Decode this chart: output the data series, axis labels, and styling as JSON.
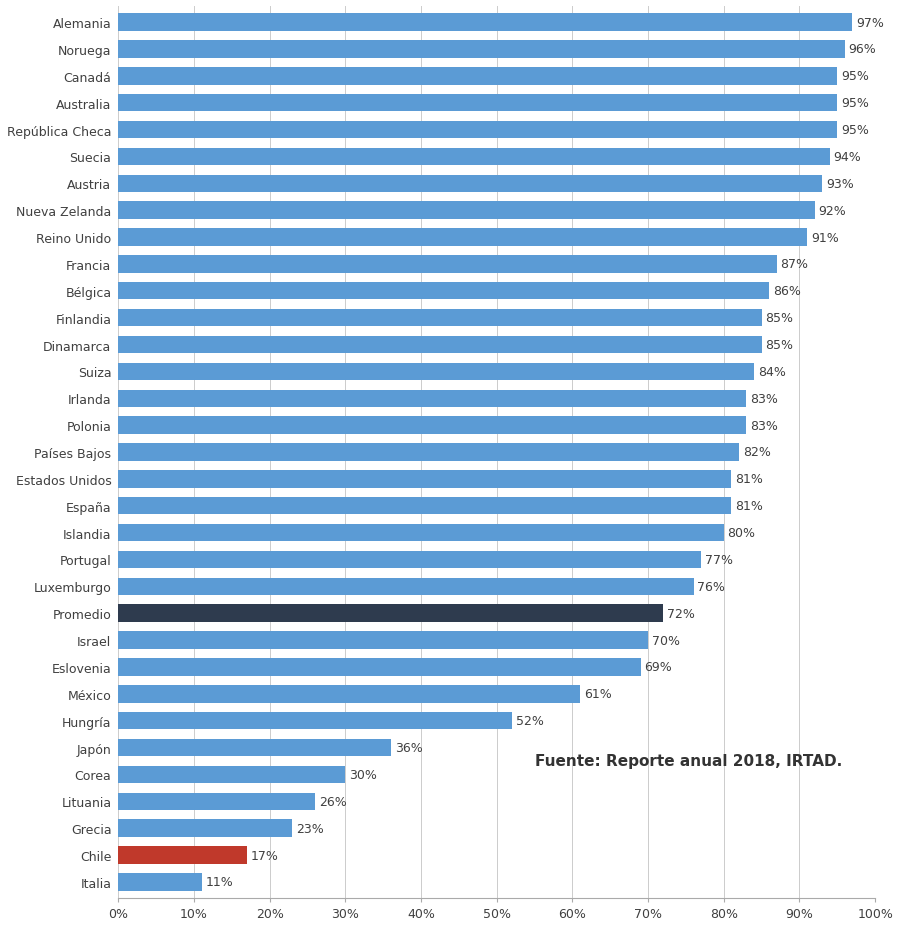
{
  "categories": [
    "Italia",
    "Chile",
    "Grecia",
    "Lituania",
    "Corea",
    "Japón",
    "Hungría",
    "México",
    "Eslovenia",
    "Israel",
    "Promedio",
    "Luxemburgo",
    "Portugal",
    "Islandia",
    "España",
    "Estados Unidos",
    "Países Bajos",
    "Polonia",
    "Irlanda",
    "Suiza",
    "Dinamarca",
    "Finlandia",
    "Bélgica",
    "Francia",
    "Reino Unido",
    "Nueva Zelanda",
    "Austria",
    "Suecia",
    "República Checa",
    "Australia",
    "Canadá",
    "Noruega",
    "Alemania"
  ],
  "values": [
    11,
    17,
    23,
    26,
    30,
    36,
    52,
    61,
    69,
    70,
    72,
    76,
    77,
    80,
    81,
    81,
    82,
    83,
    83,
    84,
    85,
    85,
    86,
    87,
    91,
    92,
    93,
    94,
    95,
    95,
    95,
    96,
    97
  ],
  "bar_colors": [
    "#5B9BD5",
    "#C0392B",
    "#5B9BD5",
    "#5B9BD5",
    "#5B9BD5",
    "#5B9BD5",
    "#5B9BD5",
    "#5B9BD5",
    "#5B9BD5",
    "#5B9BD5",
    "#2E3B4E",
    "#5B9BD5",
    "#5B9BD5",
    "#5B9BD5",
    "#5B9BD5",
    "#5B9BD5",
    "#5B9BD5",
    "#5B9BD5",
    "#5B9BD5",
    "#5B9BD5",
    "#5B9BD5",
    "#5B9BD5",
    "#5B9BD5",
    "#5B9BD5",
    "#5B9BD5",
    "#5B9BD5",
    "#5B9BD5",
    "#5B9BD5",
    "#5B9BD5",
    "#5B9BD5",
    "#5B9BD5",
    "#5B9BD5",
    "#5B9BD5"
  ],
  "xlim": [
    0,
    100
  ],
  "xtick_labels": [
    "0%",
    "10%",
    "20%",
    "30%",
    "40%",
    "50%",
    "60%",
    "70%",
    "80%",
    "90%",
    "100%"
  ],
  "xtick_values": [
    0,
    10,
    20,
    30,
    40,
    50,
    60,
    70,
    80,
    90,
    100
  ],
  "source_text": "Fuente: Reporte anual 2018, IRTAD.",
  "background_color": "#FFFFFF",
  "bar_height": 0.65,
  "label_fontsize": 9,
  "tick_fontsize": 9,
  "ytick_fontsize": 9
}
